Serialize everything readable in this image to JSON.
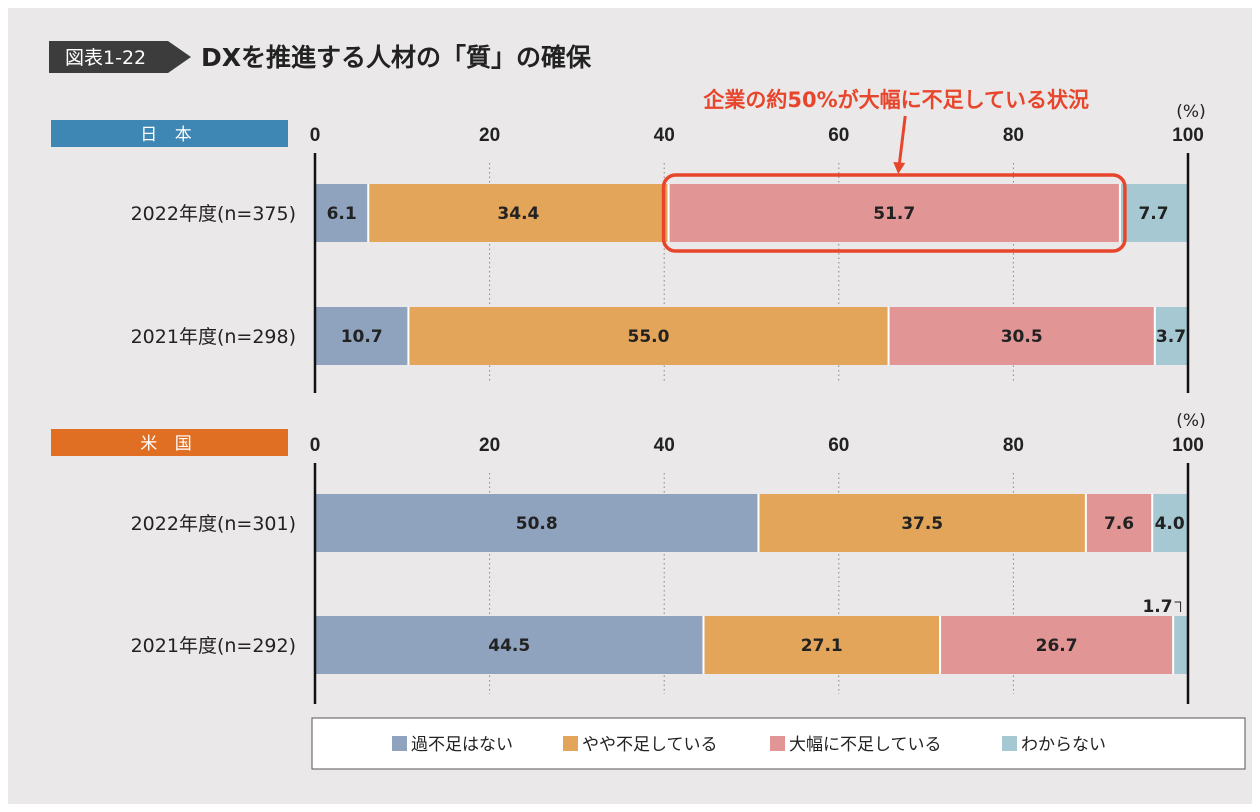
{
  "figure": {
    "badge": "図表1-22",
    "title": "DXを推進する人材の「質」の確保"
  },
  "colors": {
    "badge_bg": "#3c3c3c",
    "japan_header": "#3e86b3",
    "us_header": "#e06f24",
    "highlight": "#e8462c"
  },
  "chart_data": [
    {
      "type": "bar",
      "orientation": "horizontal",
      "stacked": true,
      "region": "日 本",
      "unit": "(%)",
      "xlim": [
        0,
        100
      ],
      "xticks": [
        0,
        20,
        40,
        60,
        80,
        100
      ],
      "gridlines": "dotted",
      "categories": [
        "2022年度(n=375)",
        "2021年度(n=298)"
      ],
      "series": [
        {
          "name": "過不足はない",
          "color": "#8fa3bf",
          "values": [
            6.1,
            10.7
          ]
        },
        {
          "name": "やや不足している",
          "color": "#e2a55a",
          "values": [
            34.4,
            55.0
          ]
        },
        {
          "name": "大幅に不足している",
          "color": "#e29595",
          "values": [
            51.7,
            30.5
          ]
        },
        {
          "name": "わからない",
          "color": "#a5c8d3",
          "values": [
            7.7,
            3.7
          ]
        }
      ],
      "annotation": {
        "text": "企業の約50%が大幅に不足している状況",
        "category_index": 0,
        "series_index": 2
      }
    },
    {
      "type": "bar",
      "orientation": "horizontal",
      "stacked": true,
      "region": "米 国",
      "unit": "(%)",
      "xlim": [
        0,
        100
      ],
      "xticks": [
        0,
        20,
        40,
        60,
        80,
        100
      ],
      "gridlines": "dotted",
      "categories": [
        "2022年度(n=301)",
        "2021年度(n=292)"
      ],
      "series": [
        {
          "name": "過不足はない",
          "color": "#8fa3bf",
          "values": [
            50.8,
            44.5
          ]
        },
        {
          "name": "やや不足している",
          "color": "#e2a55a",
          "values": [
            37.5,
            27.1
          ]
        },
        {
          "name": "大幅に不足している",
          "color": "#e29595",
          "values": [
            7.6,
            26.7
          ]
        },
        {
          "name": "わからない",
          "color": "#a5c8d3",
          "values": [
            4.0,
            1.7
          ]
        }
      ]
    }
  ],
  "legend": {
    "position": "bottom",
    "items": [
      {
        "label": "過不足はない",
        "color": "#8fa3bf"
      },
      {
        "label": "やや不足している",
        "color": "#e2a55a"
      },
      {
        "label": "大幅に不足している",
        "color": "#e29595"
      },
      {
        "label": "わからない",
        "color": "#a5c8d3"
      }
    ]
  }
}
